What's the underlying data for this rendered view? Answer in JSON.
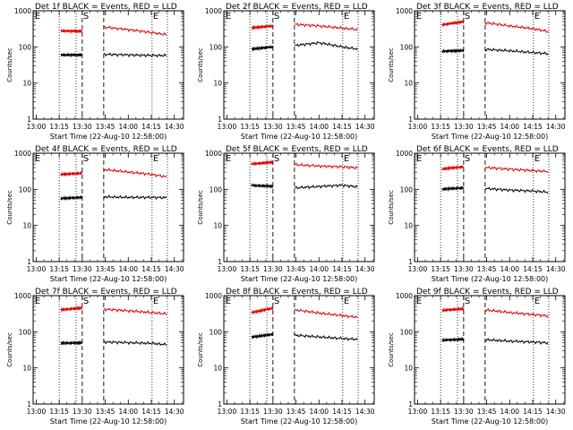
{
  "chart_data": [
    {
      "type": "line",
      "title": "Det 1f BLACK = Events, RED = LLD",
      "events": {
        "values": [
          60,
          60,
          60,
          62,
          60,
          58,
          58
        ]
      },
      "lld": {
        "values": [
          260,
          280,
          270,
          350,
          300,
          250,
          200
        ]
      }
    },
    {
      "type": "line",
      "title": "Det 2f BLACK = Events, RED = LLD",
      "events": {
        "values": [
          90,
          85,
          100,
          110,
          130,
          100,
          80
        ]
      },
      "lld": {
        "values": [
          320,
          330,
          380,
          420,
          380,
          330,
          290
        ]
      }
    },
    {
      "type": "line",
      "title": "Det 3f BLACK = Events, RED = LLD",
      "events": {
        "values": [
          70,
          75,
          80,
          85,
          78,
          70,
          62
        ]
      },
      "lld": {
        "values": [
          380,
          400,
          500,
          460,
          380,
          320,
          240
        ]
      }
    },
    {
      "type": "line",
      "title": "Det 4f BLACK = Events, RED = LLD",
      "events": {
        "values": [
          55,
          56,
          60,
          62,
          60,
          60,
          58
        ]
      },
      "lld": {
        "values": [
          230,
          260,
          280,
          350,
          300,
          260,
          200
        ]
      }
    },
    {
      "type": "line",
      "title": "Det 5f BLACK = Events, RED = LLD",
      "events": {
        "values": [
          130,
          130,
          120,
          110,
          120,
          130,
          110
        ]
      },
      "lld": {
        "values": [
          460,
          500,
          560,
          480,
          440,
          420,
          380
        ]
      }
    },
    {
      "type": "line",
      "title": "Det 6f BLACK = Events, RED = LLD",
      "events": {
        "values": [
          95,
          100,
          110,
          105,
          95,
          90,
          80
        ]
      },
      "lld": {
        "values": [
          330,
          360,
          420,
          400,
          360,
          330,
          300
        ]
      }
    },
    {
      "type": "line",
      "title": "Det 7f BLACK = Events, RED = LLD",
      "events": {
        "values": [
          45,
          48,
          50,
          52,
          50,
          48,
          42
        ]
      },
      "lld": {
        "values": [
          360,
          400,
          460,
          420,
          380,
          340,
          300
        ]
      }
    },
    {
      "type": "line",
      "title": "Det 8f BLACK = Events, RED = LLD",
      "events": {
        "values": [
          65,
          70,
          85,
          80,
          72,
          65,
          60
        ]
      },
      "lld": {
        "values": [
          300,
          330,
          450,
          400,
          330,
          280,
          240
        ]
      }
    },
    {
      "type": "line",
      "title": "Det 9f BLACK = Events, RED = LLD",
      "events": {
        "values": [
          55,
          58,
          62,
          60,
          55,
          52,
          48
        ]
      },
      "lld": {
        "values": [
          360,
          390,
          430,
          400,
          340,
          300,
          260
        ]
      }
    }
  ],
  "shared": {
    "x_ticks": [
      "13:00",
      "13:15",
      "13:30",
      "13:45",
      "14:00",
      "14:15",
      "14:30"
    ],
    "y_ticks": [
      "1",
      "10",
      "100",
      "1000"
    ],
    "ylabel": "Counts/sec",
    "xlabel": "Start Time (22-Aug-10 12:58:00)",
    "markers": [
      "E",
      "S",
      "E"
    ],
    "ylim": [
      1,
      1000
    ],
    "log_y": true,
    "colors": {
      "events": "#000000",
      "lld": "#e00000",
      "axes": "#000000"
    }
  }
}
